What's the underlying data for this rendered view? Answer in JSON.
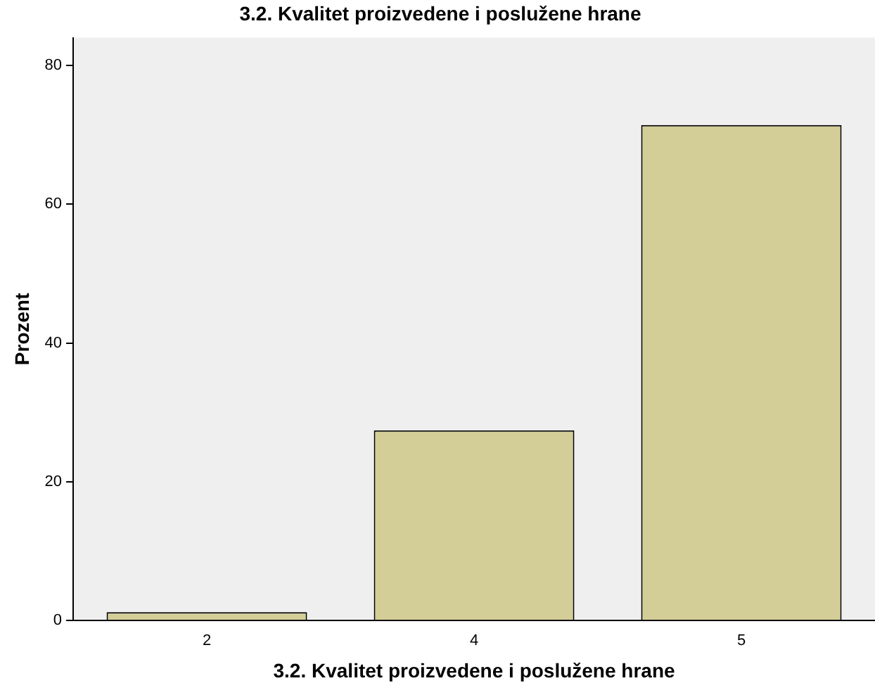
{
  "chart_data": {
    "type": "bar",
    "title": "3.2. Kvalitet proizvedene i poslužene hrane",
    "xlabel": "3.2. Kvalitet proizvedene i poslužene hrane",
    "ylabel": "Prozent",
    "categories": [
      "2",
      "4",
      "5"
    ],
    "values": [
      1.2,
      27.4,
      71.4
    ],
    "color": "#d3ce97",
    "ylim": [
      0,
      84
    ],
    "yticks": [
      0,
      20,
      40,
      60,
      80
    ],
    "grid": false,
    "legend": false
  }
}
